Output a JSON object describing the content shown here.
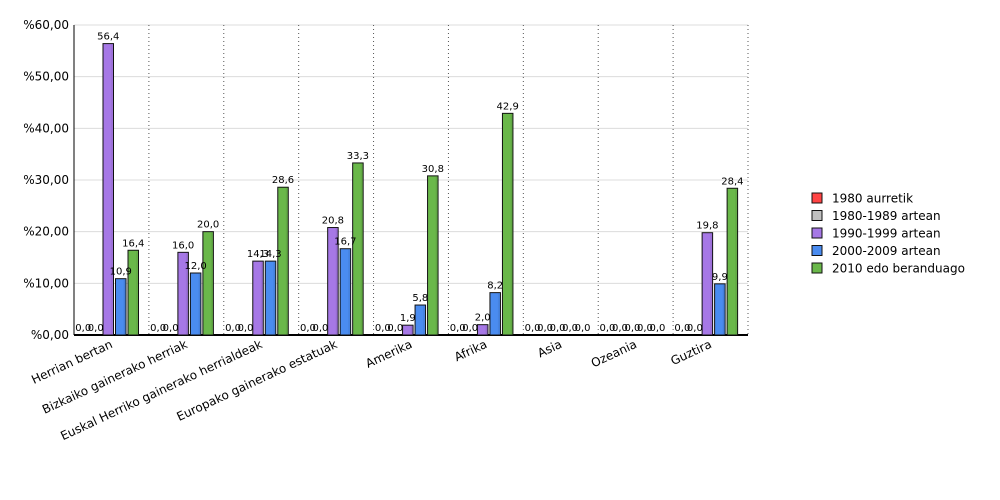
{
  "chart_data": {
    "type": "bar",
    "title": "",
    "xlabel": "",
    "ylabel": "",
    "ylim": [
      0,
      60
    ],
    "yticks": [
      0,
      10,
      20,
      30,
      40,
      50,
      60
    ],
    "ytick_labels": [
      "%0,00",
      "%10,00",
      "%20,00",
      "%30,00",
      "%40,00",
      "%50,00",
      "%60,00"
    ],
    "categories": [
      "Herrian bertan",
      "Bizkaiko gainerako herriak",
      "Euskal Herriko gainerako herrialdeak",
      "Europako gainerako estatuak",
      "Amerika",
      "Afrika",
      "Asia",
      "Ozeania",
      "Guztira"
    ],
    "series": [
      {
        "name": "1980 aurretik",
        "color": "#ff4444",
        "values": [
          0.0,
          0.0,
          0.0,
          0.0,
          0.0,
          0.0,
          0.0,
          0.0,
          0.0
        ],
        "labels": [
          "0,0",
          "0,0",
          "0,0",
          "0,0",
          "0,0",
          "0,0",
          "0,0",
          "0,0",
          "0,0"
        ]
      },
      {
        "name": "1980-1989 artean",
        "color": "#c0c0c0",
        "values": [
          0.0,
          0.0,
          0.0,
          0.0,
          0.0,
          0.0,
          0.0,
          0.0,
          0.0
        ],
        "labels": [
          "0,0",
          "0,0",
          "0,0",
          "0,0",
          "0,0",
          "0,0",
          "0,0",
          "0,0",
          "0,0"
        ]
      },
      {
        "name": "1990-1999 artean",
        "color": "#a678e6",
        "values": [
          56.4,
          16.0,
          14.3,
          20.8,
          1.9,
          2.0,
          0.0,
          0.0,
          19.8
        ],
        "labels": [
          "56,4",
          "16,0",
          "14,3",
          "20,8",
          "1,9",
          "2,0",
          "0,0",
          "0,0",
          "19,8"
        ]
      },
      {
        "name": "2000-2009 artean",
        "color": "#4a8cf0",
        "values": [
          10.9,
          12.0,
          14.3,
          16.7,
          5.8,
          8.2,
          0.0,
          0.0,
          9.9
        ],
        "labels": [
          "10,9",
          "12,0",
          "14,3",
          "16,7",
          "5,8",
          "8,2",
          "0,0",
          "0,0",
          "9,9"
        ]
      },
      {
        "name": "2010 edo beranduago",
        "color": "#6ab84a",
        "values": [
          16.4,
          20.0,
          28.6,
          33.3,
          30.8,
          42.9,
          0.0,
          0.0,
          28.4
        ],
        "labels": [
          "16,4",
          "20,0",
          "28,6",
          "33,3",
          "30,8",
          "42,9",
          "0,0",
          "0,0",
          "28,4"
        ]
      }
    ],
    "grid": true,
    "legend_position": "right"
  }
}
